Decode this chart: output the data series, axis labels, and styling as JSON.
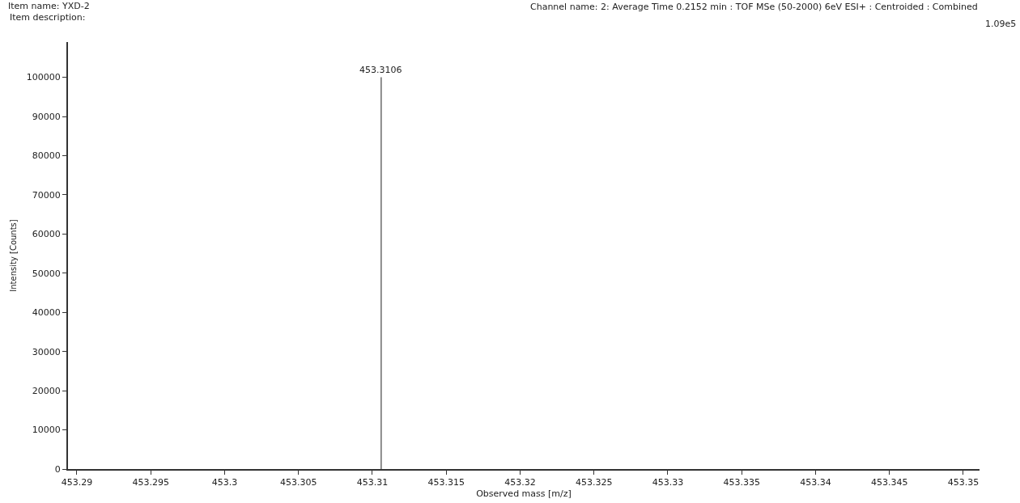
{
  "chart_data": {
    "type": "bar",
    "title": "Item name: YXD-2",
    "subtitle": "Item description:",
    "xlabel": "Observed mass [m/z]",
    "ylabel": "Intensity [Counts]",
    "x": [
      453.3106
    ],
    "values": [
      100000
    ],
    "color": "#333333",
    "xlim": [
      453.2894,
      453.3511
    ],
    "xticks": [
      453.29,
      453.295,
      453.3,
      453.305,
      453.31,
      453.315,
      453.32,
      453.325,
      453.33,
      453.335,
      453.34,
      453.345,
      453.35
    ],
    "ylim": [
      0,
      109000
    ],
    "yticks": [
      0,
      10000,
      20000,
      30000,
      40000,
      50000,
      60000,
      70000,
      80000,
      90000,
      100000
    ],
    "annotations": [
      "Channel name: 2: Average Time 0.2152 min : TOF MSe (50-2000) 6eV ESI+ : Centroided : Combined",
      "1.09e5",
      {
        "text": "453.3106",
        "x": 453.3106,
        "y": 100000
      }
    ],
    "grid": false
  }
}
